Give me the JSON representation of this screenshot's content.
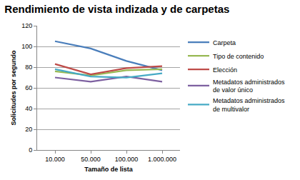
{
  "chart_data": {
    "type": "line",
    "title": "Rendimiento de vista indizada y de carpetas",
    "x_label": "Tamaño de lista",
    "y_label": "Solicitudes por segundo",
    "categories": [
      "10.000",
      "50.000",
      "100.000",
      "1.000.000"
    ],
    "series": [
      {
        "name": "Carpeta",
        "color": "#4a7ebb",
        "values": [
          105,
          98,
          86,
          77
        ]
      },
      {
        "name": "Tipo de contenido",
        "color": "#98b954",
        "values": [
          76,
          72,
          77,
          78
        ]
      },
      {
        "name": "Elección",
        "color": "#be4b48",
        "values": [
          83,
          73,
          79,
          81
        ]
      },
      {
        "name": "Metadatos administrados de valor único",
        "color": "#7d60a0",
        "values": [
          70,
          66,
          71,
          66
        ]
      },
      {
        "name": "Metadatos administrados de multivalor",
        "color": "#46aac5",
        "values": [
          78,
          71,
          70,
          74
        ]
      }
    ],
    "ylim": [
      0,
      120
    ],
    "yticks": [
      0,
      20,
      40,
      60,
      80,
      100,
      120
    ],
    "grid": true,
    "legend": "right"
  }
}
